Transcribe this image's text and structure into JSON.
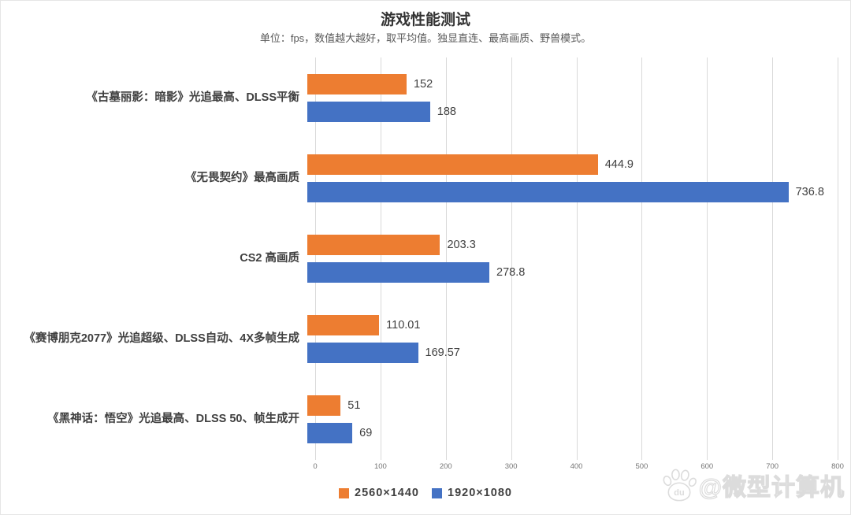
{
  "page": {
    "background": "#ffffff",
    "border_color": "#e6e6e6"
  },
  "chart_data": {
    "type": "bar",
    "orientation": "horizontal",
    "title": "游戏性能测试",
    "subtitle": "单位：fps，数值越大越好，取平均值。独显直连、最高画质、野兽模式。",
    "categories": [
      "《古墓丽影：暗影》光追最高、DLSS平衡",
      "《无畏契约》最高画质",
      "CS2 高画质",
      "《赛博朋克2077》光追超级、DLSS自动、4X多帧生成",
      "《黑神话：悟空》光追最高、DLSS 50、帧生成开"
    ],
    "series": [
      {
        "name": "2560×1440",
        "color": "#ED7D31",
        "values": [
          152,
          444.9,
          203.3,
          110.01,
          51
        ]
      },
      {
        "name": "1920×1080",
        "color": "#4472C4",
        "values": [
          188,
          736.8,
          278.8,
          169.57,
          69
        ]
      }
    ],
    "xlim": [
      0,
      800
    ],
    "x_ticks": [
      0,
      100,
      200,
      300,
      400,
      500,
      600,
      700,
      800
    ],
    "grid": true,
    "gridline_color": "#d9d9d9",
    "legend_position": "bottom",
    "value_label_color": "#404040",
    "tick_label_color": "#757575"
  },
  "watermark": {
    "icon": "baidu-paw-icon",
    "icon_label": "du",
    "text": "@微型计算机"
  }
}
